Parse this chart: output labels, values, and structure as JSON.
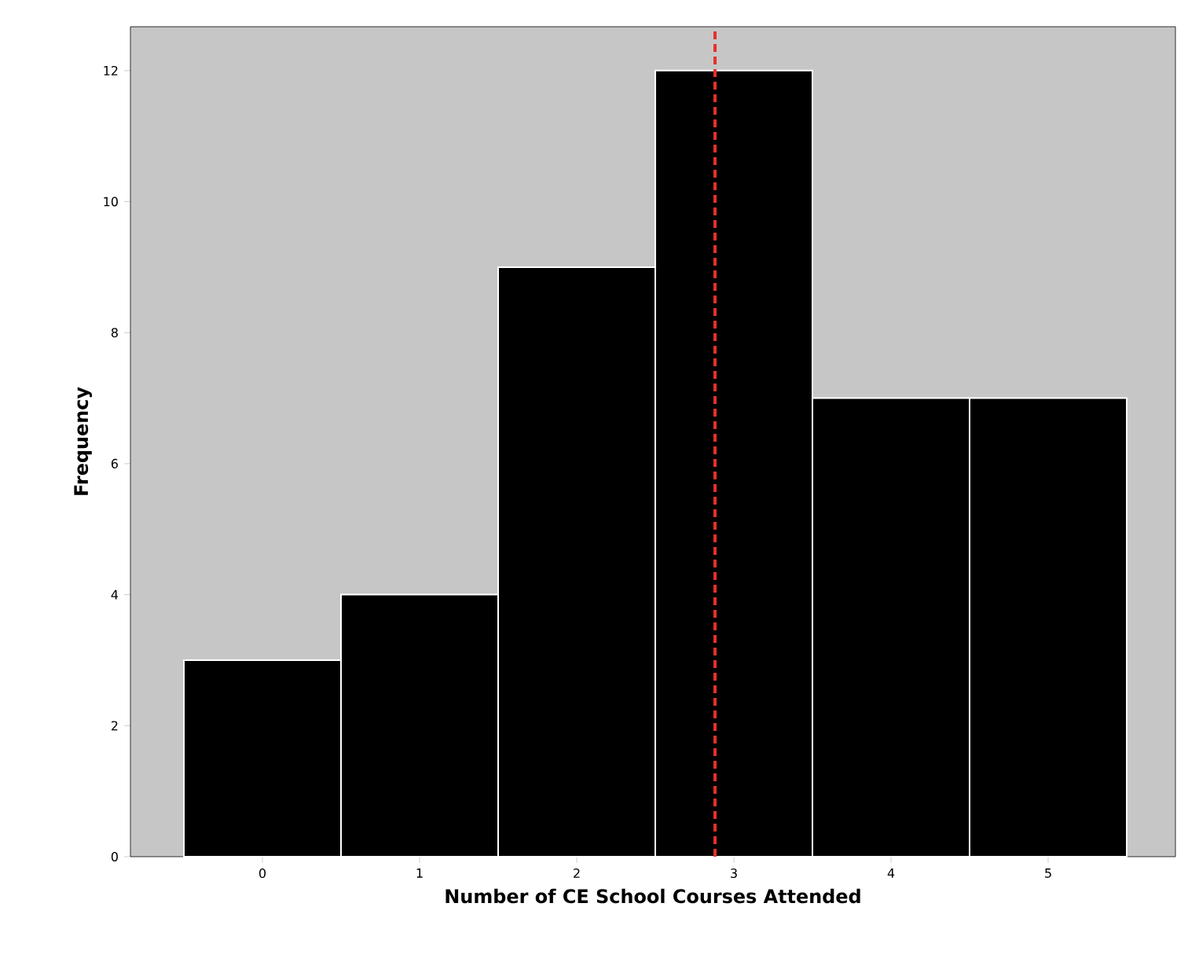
{
  "chart_data": {
    "type": "histogram",
    "xlabel": "Number of CE School Courses Attended",
    "ylabel": "Frequency",
    "bins": [
      -0.5,
      0.5,
      1.5,
      2.5,
      3.5,
      4.5,
      5.5
    ],
    "values": [
      3,
      4,
      9,
      12,
      7,
      7
    ],
    "color": "#000000",
    "xlim": [
      -0.84,
      5.81
    ],
    "ylim": [
      0,
      12.67
    ],
    "xticks": [
      0,
      1,
      2,
      3,
      4,
      5
    ],
    "yticks": [
      0,
      2,
      4,
      6,
      8,
      10,
      12
    ],
    "ref_lines": [
      {
        "axis": "x",
        "value": 2.88,
        "color": "#e8302a",
        "line_style": "dashed"
      }
    ]
  }
}
